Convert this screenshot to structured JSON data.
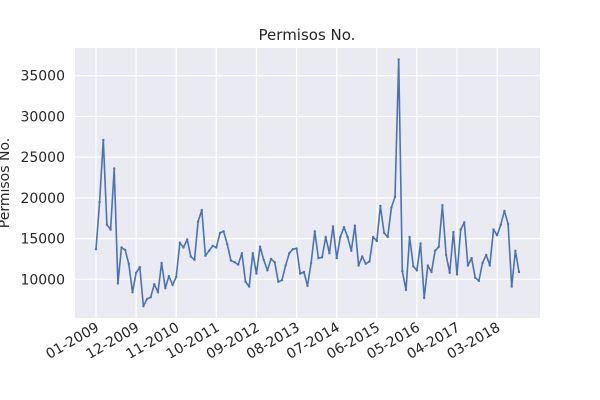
{
  "chart_data": {
    "type": "line",
    "title": "Permisos No.",
    "xlabel": "",
    "ylabel": "Permisos No.",
    "ylim": [
      5250,
      38400
    ],
    "grid": true,
    "colors": {
      "background": "#eaeaf2",
      "grid": "#ffffff",
      "line": "#4c72b0"
    },
    "x_tick_labels": [
      "01-2009",
      "12-2009",
      "11-2010",
      "10-2011",
      "09-2012",
      "08-2013",
      "07-2014",
      "06-2015",
      "05-2016",
      "04-2017",
      "03-2018"
    ],
    "y_ticks": [
      10000,
      15000,
      20000,
      25000,
      30000,
      35000
    ],
    "y_tick_labels": [
      "10000",
      "15000",
      "20000",
      "25000",
      "30000",
      "35000"
    ],
    "series": [
      {
        "values": [
          13700,
          19500,
          27100,
          16700,
          16100,
          23600,
          9500,
          13900,
          13600,
          11900,
          8400,
          10800,
          11500,
          6700,
          7600,
          7800,
          9400,
          8400,
          12000,
          8900,
          10400,
          9300,
          10300,
          14500,
          13900,
          14900,
          12800,
          12400,
          17100,
          18500,
          12900,
          13500,
          14100,
          13900,
          15700,
          15900,
          14300,
          12300,
          12100,
          11800,
          13200,
          9700,
          9100,
          13200,
          10700,
          14000,
          12400,
          11100,
          12500,
          12100,
          9700,
          9900,
          11700,
          13200,
          13700,
          13800,
          10700,
          10900,
          9200,
          12000,
          15900,
          12600,
          12700,
          15200,
          13200,
          16500,
          12600,
          15200,
          16400,
          15200,
          13500,
          16600,
          11700,
          12800,
          11900,
          12200,
          15200,
          14700,
          19000,
          15700,
          15200,
          18800,
          20100,
          37000,
          11000,
          8700,
          15200,
          11600,
          11100,
          14400,
          7700,
          11700,
          10900,
          13500,
          14000,
          19100,
          13000,
          10800,
          15800,
          10600,
          16100,
          17000,
          11700,
          12600,
          10200,
          9800,
          12000,
          13000,
          11700,
          16100,
          15400,
          16700,
          18400,
          16800,
          9100,
          13500,
          10900
        ]
      }
    ]
  }
}
